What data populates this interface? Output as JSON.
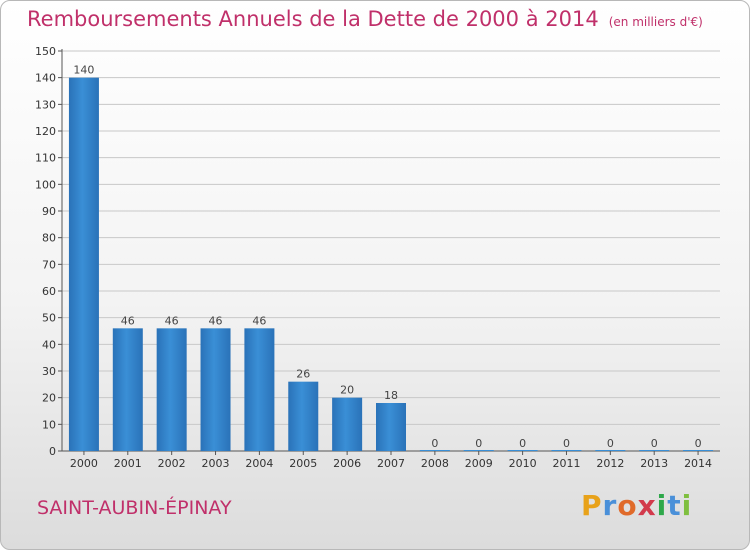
{
  "page": {
    "title": "Remboursements Annuels de la Dette de 2000 à 2014",
    "unit_note": "(en milliers d'€)",
    "commune": "SAINT-AUBIN-ÉPINAY",
    "brand": {
      "letters": [
        "P",
        "r",
        "o",
        "x",
        "i",
        "t",
        "i"
      ],
      "colors": [
        "#e8a21a",
        "#4a90d9",
        "#e06a2a",
        "#d23a4c",
        "#2ea84a",
        "#4a90d9",
        "#7fbf3f"
      ]
    }
  },
  "colors": {
    "accent": "#c0306a",
    "bar": "#3a8fd6",
    "bar_dark": "#2a72b8",
    "grid": "#c8c8c8"
  },
  "chart_data": {
    "type": "bar",
    "title": "Remboursements Annuels de la Dette de 2000 à 2014",
    "subtitle": "(en milliers d'€)",
    "categories": [
      "2000",
      "2001",
      "2002",
      "2003",
      "2004",
      "2005",
      "2006",
      "2007",
      "2008",
      "2009",
      "2010",
      "2011",
      "2012",
      "2013",
      "2014"
    ],
    "values": [
      140,
      46,
      46,
      46,
      46,
      26,
      20,
      18,
      0,
      0,
      0,
      0,
      0,
      0,
      0
    ],
    "ylim": [
      0,
      150
    ],
    "yticks": [
      0,
      10,
      20,
      30,
      40,
      50,
      60,
      70,
      80,
      90,
      100,
      110,
      120,
      130,
      140,
      150
    ],
    "grid": true,
    "data_labels": true
  }
}
